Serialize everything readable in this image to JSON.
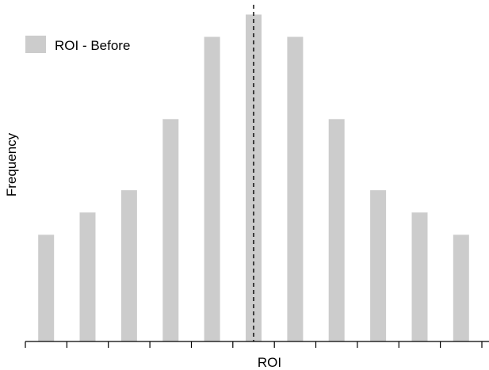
{
  "chart_data": {
    "type": "bar",
    "categories": [
      "",
      "",
      "",
      "",
      "",
      "",
      "",
      "",
      "",
      "",
      ""
    ],
    "series": [
      {
        "name": "ROI - Before",
        "values": [
          4.8,
          5.8,
          6.8,
          10.0,
          13.7,
          14.7,
          13.7,
          10.0,
          6.8,
          5.8,
          4.8
        ]
      }
    ],
    "reference_line": {
      "style": "dashed",
      "x": 5.5
    },
    "xlabel": "ROI",
    "ylabel": "Frequency",
    "ylim": [
      0,
      15
    ],
    "grid": false,
    "legend": "top-left",
    "colors": {
      "bar": "#cccccc",
      "axis": "#000000",
      "reference_line": "#000000"
    }
  }
}
